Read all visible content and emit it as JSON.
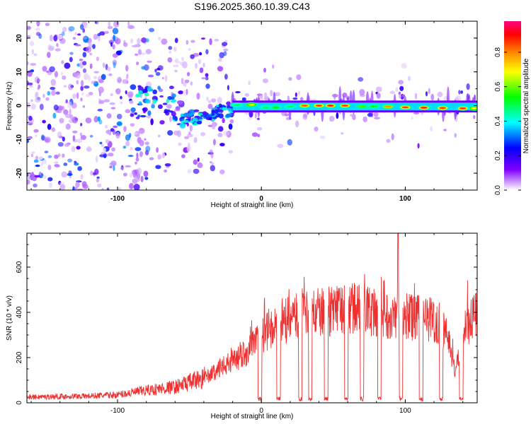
{
  "title": "S196.2025.360.10.39.C43",
  "chart_data": [
    {
      "type": "heatmap",
      "name": "spectrogram",
      "title": "S196.2025.360.10.39.C43",
      "xlabel": "Height of straight line (km)",
      "ylabel": "Frequency (Hz)",
      "xlim": [
        -163,
        150
      ],
      "ylim": [
        -25,
        25
      ],
      "xticks": [
        -100,
        0,
        100
      ],
      "yticks": [
        -20,
        -10,
        0,
        10,
        20
      ],
      "colorbar": {
        "label": "Normalized spectral amplitude",
        "range": [
          0,
          0.98
        ],
        "ticks": [
          0.0,
          0.2,
          0.4,
          0.6,
          0.8
        ],
        "tick_labels": [
          "0.0",
          "0.2",
          "0.4",
          "0.6",
          "0.8"
        ],
        "colors": [
          "#ffffff",
          "#8000ff",
          "#0000ff",
          "#00ffff",
          "#00ff00",
          "#ffff00",
          "#ff8000",
          "#ff0000",
          "#ff0080"
        ]
      },
      "ridge": {
        "description_note": "strong line near 0 Hz beyond ~ -20 km",
        "segments": [
          {
            "x": -17,
            "freq": 0.2,
            "amp": 0.5
          },
          {
            "x": -7,
            "freq": 0.3,
            "amp": 0.7
          },
          {
            "x": 3,
            "freq": -0.5,
            "amp": 0.5
          },
          {
            "x": 10,
            "freq": -0.5,
            "amp": 0.55
          },
          {
            "x": 20,
            "freq": -0.3,
            "amp": 0.5
          },
          {
            "x": 30,
            "freq": 0.0,
            "amp": 0.85
          },
          {
            "x": 40,
            "freq": 0.0,
            "amp": 0.88
          },
          {
            "x": 48,
            "freq": 0.0,
            "amp": 0.9
          },
          {
            "x": 58,
            "freq": 0.0,
            "amp": 0.88
          },
          {
            "x": 70,
            "freq": -0.2,
            "amp": 0.6
          },
          {
            "x": 78,
            "freq": -0.2,
            "amp": 0.55
          },
          {
            "x": 88,
            "freq": -0.3,
            "amp": 0.8
          },
          {
            "x": 100,
            "freq": -0.5,
            "amp": 0.88
          },
          {
            "x": 113,
            "freq": -0.6,
            "amp": 0.9
          },
          {
            "x": 126,
            "freq": -0.7,
            "amp": 0.88
          },
          {
            "x": 140,
            "freq": -0.8,
            "amp": 0.88
          },
          {
            "x": 148,
            "freq": -0.8,
            "amp": 0.7
          }
        ]
      }
    },
    {
      "type": "line",
      "name": "snr",
      "xlabel": "Height of straight line (km)",
      "ylabel": "SNR (10 * v/v)",
      "xlim": [
        -163,
        150
      ],
      "ylim": [
        0,
        750
      ],
      "xticks": [
        -100,
        0,
        100
      ],
      "yticks": [
        0,
        200,
        400,
        600
      ],
      "color": "#ee3030",
      "envelope": {
        "x": [
          -163,
          -140,
          -120,
          -100,
          -80,
          -60,
          -50,
          -40,
          -30,
          -20,
          -10,
          0,
          10,
          20,
          30,
          40,
          50,
          60,
          70,
          80,
          90,
          100,
          110,
          120,
          130,
          135,
          140,
          150
        ],
        "y": [
          25,
          28,
          30,
          35,
          55,
          70,
          90,
          110,
          150,
          190,
          230,
          300,
          350,
          380,
          400,
          410,
          420,
          430,
          425,
          410,
          400,
          390,
          385,
          380,
          300,
          130,
          330,
          420
        ]
      },
      "dips_x": [
        -1,
        12,
        27,
        34,
        45,
        59,
        70,
        82,
        97,
        111,
        125,
        139
      ],
      "peak": {
        "x": 95,
        "y": 750
      }
    }
  ]
}
